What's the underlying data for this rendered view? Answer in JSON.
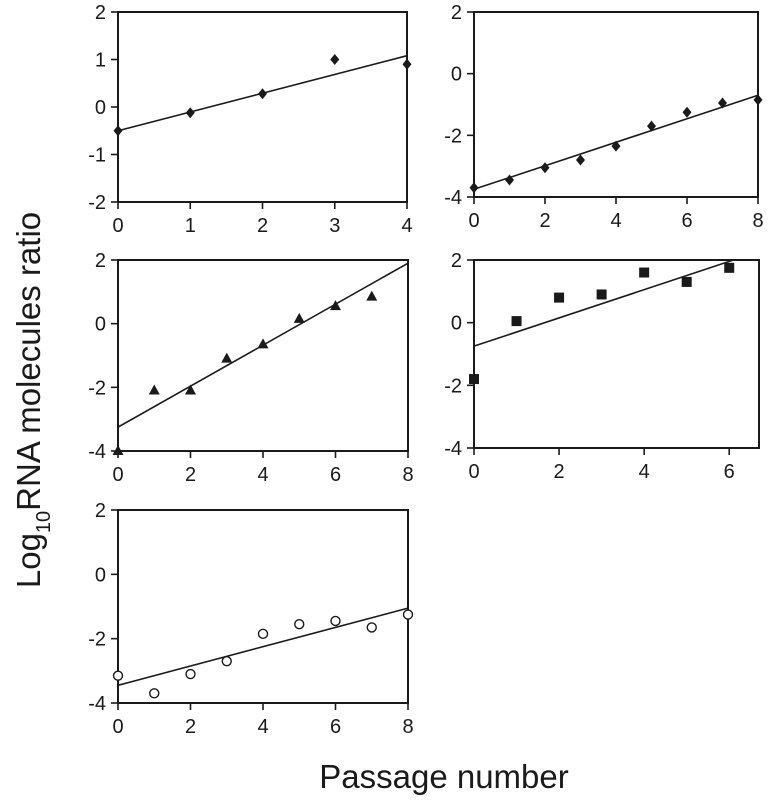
{
  "figure": {
    "ylabel_main": "Log",
    "ylabel_sub": "10",
    "ylabel_rest": "RNA molecules ratio",
    "xlabel": "Passage number"
  },
  "chart_data": [
    {
      "type": "scatter",
      "marker": "diamond",
      "xlim": [
        0,
        4
      ],
      "ylim": [
        -2,
        2
      ],
      "xticks": [
        0,
        1,
        2,
        3,
        4
      ],
      "yticks": [
        -2,
        -1,
        0,
        1,
        2
      ],
      "series": [
        {
          "x": [
            0,
            1,
            2,
            3,
            4
          ],
          "y": [
            -0.5,
            -0.12,
            0.28,
            1.0,
            0.9
          ]
        }
      ],
      "trendline": {
        "x": [
          0,
          4
        ],
        "y": [
          -0.5,
          1.08
        ]
      }
    },
    {
      "type": "scatter",
      "marker": "diamond",
      "xlim": [
        0,
        8
      ],
      "ylim": [
        -4,
        2
      ],
      "xticks": [
        0,
        2,
        4,
        6,
        8
      ],
      "yticks": [
        -4,
        -2,
        0,
        2
      ],
      "series": [
        {
          "x": [
            0,
            1,
            2,
            3,
            4,
            5,
            6,
            7,
            8
          ],
          "y": [
            -3.7,
            -3.45,
            -3.05,
            -2.8,
            -2.35,
            -1.7,
            -1.25,
            -0.95,
            -0.85
          ]
        }
      ],
      "trendline": {
        "x": [
          0,
          8
        ],
        "y": [
          -3.75,
          -0.7
        ]
      }
    },
    {
      "type": "scatter",
      "marker": "triangle",
      "xlim": [
        0,
        8
      ],
      "ylim": [
        -4,
        2
      ],
      "xticks": [
        0,
        2,
        4,
        6,
        8
      ],
      "yticks": [
        -4,
        -2,
        0,
        2
      ],
      "series": [
        {
          "x": [
            0,
            1,
            2,
            3,
            4,
            5,
            6,
            7
          ],
          "y": [
            -4.0,
            -2.1,
            -2.1,
            -1.1,
            -0.65,
            0.15,
            0.55,
            0.85
          ]
        }
      ],
      "trendline": {
        "x": [
          0,
          8
        ],
        "y": [
          -3.25,
          1.9
        ]
      }
    },
    {
      "type": "scatter",
      "marker": "square",
      "xlim": [
        0,
        6.7
      ],
      "ylim": [
        -4,
        2
      ],
      "xticks": [
        0,
        2,
        4,
        6
      ],
      "yticks": [
        -4,
        -2,
        0,
        2
      ],
      "series": [
        {
          "x": [
            0,
            1,
            2,
            3,
            4,
            5,
            6
          ],
          "y": [
            -1.8,
            0.05,
            0.8,
            0.9,
            1.6,
            1.3,
            1.75
          ]
        }
      ],
      "trendline": {
        "x": [
          0,
          6.1
        ],
        "y": [
          -0.75,
          2.0
        ]
      }
    },
    {
      "type": "scatter",
      "marker": "circle-open",
      "xlim": [
        0,
        8
      ],
      "ylim": [
        -4,
        2
      ],
      "xticks": [
        0,
        2,
        4,
        6,
        8
      ],
      "yticks": [
        -4,
        -2,
        0,
        2
      ],
      "series": [
        {
          "x": [
            0,
            1,
            2,
            3,
            4,
            5,
            6,
            7,
            8
          ],
          "y": [
            -3.15,
            -3.7,
            -3.1,
            -2.7,
            -1.85,
            -1.55,
            -1.45,
            -1.65,
            -1.25
          ]
        }
      ],
      "trendline": {
        "x": [
          0,
          8
        ],
        "y": [
          -3.45,
          -1.05
        ]
      }
    }
  ]
}
